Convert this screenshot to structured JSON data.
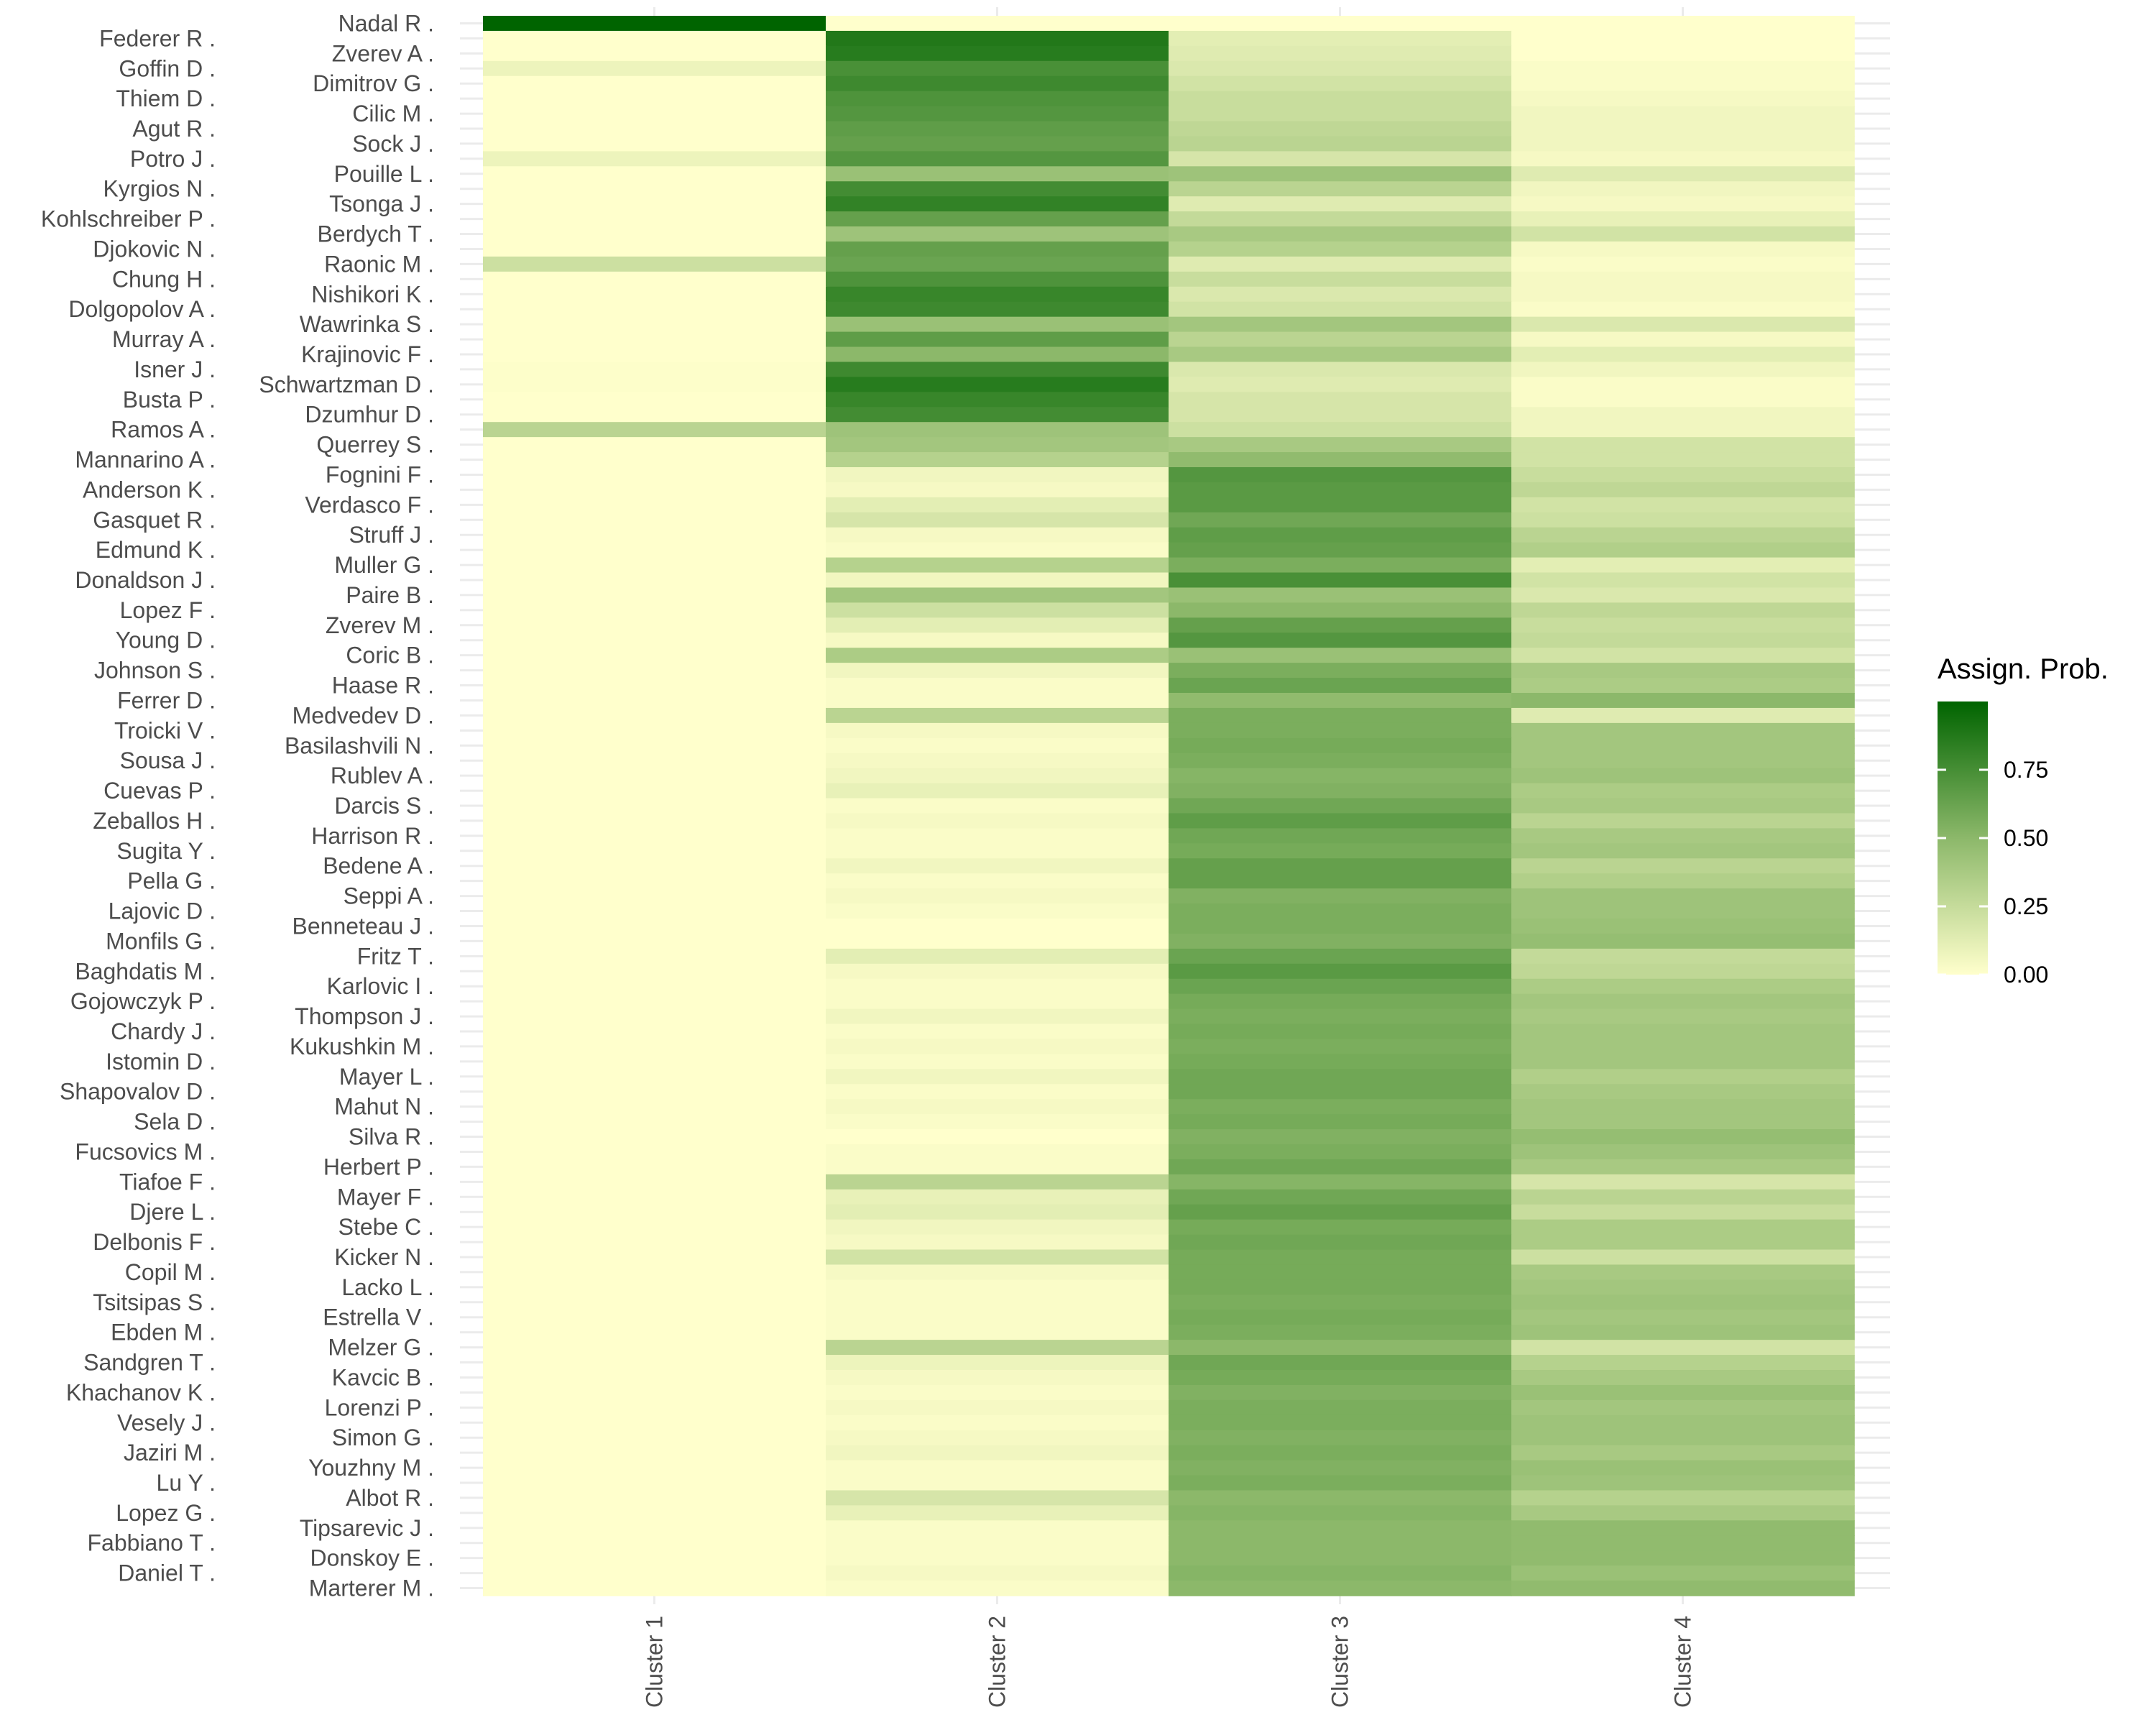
{
  "chart_data": {
    "type": "heatmap",
    "columns": [
      "Cluster 1",
      "Cluster 2",
      "Cluster 3",
      "Cluster 4"
    ],
    "rows": [
      "Nadal R .",
      "Federer R .",
      "Zverev A .",
      "Goffin D .",
      "Dimitrov G .",
      "Thiem D .",
      "Cilic M .",
      "Agut R .",
      "Sock J .",
      "Potro J .",
      "Pouille L .",
      "Kyrgios N .",
      "Tsonga J .",
      "Kohlschreiber P .",
      "Berdych T .",
      "Djokovic N .",
      "Raonic M .",
      "Chung H .",
      "Nishikori K .",
      "Dolgopolov A .",
      "Wawrinka S .",
      "Murray A .",
      "Krajinovic F .",
      "Isner J .",
      "Schwartzman D .",
      "Busta P .",
      "Dzumhur D .",
      "Ramos A .",
      "Querrey S .",
      "Mannarino A .",
      "Fognini F .",
      "Anderson K .",
      "Verdasco F .",
      "Gasquet R .",
      "Struff J .",
      "Edmund K .",
      "Muller G .",
      "Donaldson J .",
      "Paire B .",
      "Lopez F .",
      "Zverev M .",
      "Young D .",
      "Coric B .",
      "Johnson S .",
      "Haase R .",
      "Ferrer D .",
      "Medvedev D .",
      "Troicki V .",
      "Basilashvili N .",
      "Sousa J .",
      "Rublev A .",
      "Cuevas P .",
      "Darcis S .",
      "Zeballos H .",
      "Harrison R .",
      "Sugita Y .",
      "Bedene A .",
      "Pella G .",
      "Seppi A .",
      "Lajovic D .",
      "Benneteau J .",
      "Monfils G .",
      "Fritz T .",
      "Baghdatis M .",
      "Karlovic I .",
      "Gojowczyk P .",
      "Thompson J .",
      "Chardy J .",
      "Kukushkin M .",
      "Istomin D .",
      "Mayer L .",
      "Shapovalov D .",
      "Mahut N .",
      "Sela D .",
      "Silva R .",
      "Fucsovics M .",
      "Herbert P .",
      "Tiafoe F .",
      "Mayer F .",
      "Djere L .",
      "Stebe C .",
      "Delbonis F .",
      "Kicker N .",
      "Copil M .",
      "Lacko L .",
      "Tsitsipas S .",
      "Estrella V .",
      "Ebden M .",
      "Melzer G .",
      "Sandgren T .",
      "Kavcic B .",
      "Khachanov K .",
      "Lorenzi P .",
      "Vesely J .",
      "Simon G .",
      "Jaziri M .",
      "Youzhny M .",
      "Lu Y .",
      "Albot R .",
      "Lopez G .",
      "Tipsarevic J .",
      "Fabbiano T .",
      "Donskoy E .",
      "Daniel T .",
      "Marterer M ."
    ],
    "values": [
      [
        1.0,
        0.0,
        0.0,
        0.0
      ],
      [
        0.0,
        0.88,
        0.12,
        0.0
      ],
      [
        0.0,
        0.86,
        0.14,
        0.0
      ],
      [
        0.08,
        0.74,
        0.16,
        0.02
      ],
      [
        0.0,
        0.78,
        0.2,
        0.02
      ],
      [
        0.0,
        0.72,
        0.24,
        0.04
      ],
      [
        0.0,
        0.7,
        0.24,
        0.06
      ],
      [
        0.0,
        0.66,
        0.28,
        0.06
      ],
      [
        0.0,
        0.64,
        0.3,
        0.06
      ],
      [
        0.08,
        0.7,
        0.18,
        0.04
      ],
      [
        0.0,
        0.44,
        0.42,
        0.14
      ],
      [
        0.0,
        0.76,
        0.3,
        0.06
      ],
      [
        0.0,
        0.82,
        0.14,
        0.04
      ],
      [
        0.0,
        0.64,
        0.26,
        0.1
      ],
      [
        0.0,
        0.42,
        0.38,
        0.2
      ],
      [
        0.0,
        0.64,
        0.32,
        0.04
      ],
      [
        0.22,
        0.62,
        0.14,
        0.02
      ],
      [
        0.0,
        0.72,
        0.24,
        0.04
      ],
      [
        0.0,
        0.8,
        0.16,
        0.04
      ],
      [
        0.0,
        0.78,
        0.2,
        0.02
      ],
      [
        0.0,
        0.44,
        0.4,
        0.16
      ],
      [
        0.0,
        0.66,
        0.3,
        0.04
      ],
      [
        0.0,
        0.5,
        0.38,
        0.12
      ],
      [
        0.01,
        0.78,
        0.16,
        0.06
      ],
      [
        0.01,
        0.86,
        0.14,
        0.02
      ],
      [
        0.0,
        0.8,
        0.18,
        0.02
      ],
      [
        0.0,
        0.76,
        0.18,
        0.06
      ],
      [
        0.3,
        0.42,
        0.22,
        0.06
      ],
      [
        0.0,
        0.4,
        0.38,
        0.2
      ],
      [
        0.0,
        0.32,
        0.48,
        0.2
      ],
      [
        0.0,
        0.06,
        0.7,
        0.24
      ],
      [
        0.0,
        0.04,
        0.68,
        0.28
      ],
      [
        0.0,
        0.12,
        0.68,
        0.2
      ],
      [
        0.0,
        0.18,
        0.6,
        0.22
      ],
      [
        0.0,
        0.04,
        0.66,
        0.3
      ],
      [
        0.0,
        0.02,
        0.64,
        0.34
      ],
      [
        0.0,
        0.32,
        0.56,
        0.12
      ],
      [
        0.0,
        0.06,
        0.74,
        0.2
      ],
      [
        0.0,
        0.4,
        0.44,
        0.16
      ],
      [
        0.0,
        0.22,
        0.5,
        0.28
      ],
      [
        0.0,
        0.12,
        0.64,
        0.24
      ],
      [
        0.0,
        0.04,
        0.7,
        0.26
      ],
      [
        0.0,
        0.36,
        0.44,
        0.2
      ],
      [
        0.0,
        0.06,
        0.56,
        0.38
      ],
      [
        0.0,
        0.02,
        0.62,
        0.36
      ],
      [
        0.0,
        0.02,
        0.48,
        0.5
      ],
      [
        0.0,
        0.3,
        0.56,
        0.14
      ],
      [
        0.0,
        0.04,
        0.56,
        0.4
      ],
      [
        0.0,
        0.02,
        0.58,
        0.4
      ],
      [
        0.0,
        0.04,
        0.56,
        0.4
      ],
      [
        0.0,
        0.06,
        0.52,
        0.42
      ],
      [
        0.0,
        0.1,
        0.54,
        0.36
      ],
      [
        0.0,
        0.02,
        0.6,
        0.38
      ],
      [
        0.0,
        0.04,
        0.66,
        0.3
      ],
      [
        0.0,
        0.02,
        0.6,
        0.38
      ],
      [
        0.0,
        0.02,
        0.58,
        0.4
      ],
      [
        0.0,
        0.06,
        0.64,
        0.3
      ],
      [
        0.0,
        0.02,
        0.64,
        0.34
      ],
      [
        0.0,
        0.04,
        0.54,
        0.42
      ],
      [
        0.0,
        0.02,
        0.56,
        0.42
      ],
      [
        0.0,
        0.0,
        0.56,
        0.44
      ],
      [
        0.0,
        0.0,
        0.54,
        0.46
      ],
      [
        0.0,
        0.12,
        0.62,
        0.26
      ],
      [
        0.0,
        0.04,
        0.68,
        0.28
      ],
      [
        0.0,
        0.02,
        0.62,
        0.36
      ],
      [
        0.0,
        0.02,
        0.58,
        0.4
      ],
      [
        0.0,
        0.06,
        0.56,
        0.38
      ],
      [
        0.0,
        0.02,
        0.58,
        0.4
      ],
      [
        0.0,
        0.04,
        0.56,
        0.4
      ],
      [
        0.0,
        0.02,
        0.58,
        0.4
      ],
      [
        0.0,
        0.06,
        0.6,
        0.34
      ],
      [
        0.0,
        0.02,
        0.6,
        0.38
      ],
      [
        0.0,
        0.04,
        0.56,
        0.4
      ],
      [
        0.0,
        0.02,
        0.58,
        0.4
      ],
      [
        0.0,
        0.0,
        0.54,
        0.46
      ],
      [
        0.0,
        0.02,
        0.56,
        0.42
      ],
      [
        0.0,
        0.02,
        0.6,
        0.38
      ],
      [
        0.0,
        0.3,
        0.52,
        0.18
      ],
      [
        0.0,
        0.1,
        0.6,
        0.3
      ],
      [
        0.0,
        0.12,
        0.64,
        0.24
      ],
      [
        0.0,
        0.06,
        0.58,
        0.36
      ],
      [
        0.0,
        0.04,
        0.6,
        0.36
      ],
      [
        0.0,
        0.2,
        0.58,
        0.22
      ],
      [
        0.0,
        0.04,
        0.58,
        0.38
      ],
      [
        0.0,
        0.02,
        0.58,
        0.4
      ],
      [
        0.0,
        0.02,
        0.56,
        0.42
      ],
      [
        0.0,
        0.02,
        0.58,
        0.4
      ],
      [
        0.0,
        0.02,
        0.56,
        0.42
      ],
      [
        0.0,
        0.3,
        0.5,
        0.2
      ],
      [
        0.0,
        0.08,
        0.6,
        0.32
      ],
      [
        0.0,
        0.04,
        0.58,
        0.38
      ],
      [
        0.0,
        0.02,
        0.54,
        0.44
      ],
      [
        0.0,
        0.04,
        0.56,
        0.4
      ],
      [
        0.0,
        0.02,
        0.56,
        0.42
      ],
      [
        0.0,
        0.04,
        0.54,
        0.42
      ],
      [
        0.0,
        0.06,
        0.56,
        0.38
      ],
      [
        0.0,
        0.02,
        0.54,
        0.44
      ],
      [
        0.0,
        0.02,
        0.56,
        0.42
      ],
      [
        0.0,
        0.18,
        0.5,
        0.32
      ],
      [
        0.0,
        0.1,
        0.52,
        0.38
      ],
      [
        0.0,
        0.02,
        0.5,
        0.48
      ],
      [
        0.0,
        0.02,
        0.5,
        0.48
      ],
      [
        0.0,
        0.02,
        0.5,
        0.48
      ],
      [
        0.0,
        0.04,
        0.52,
        0.44
      ],
      [
        0.0,
        0.02,
        0.5,
        0.48
      ]
    ],
    "legend": {
      "title": "Assign. Prob.",
      "ticks": [
        0.0,
        0.25,
        0.5,
        0.75
      ],
      "tick_labels": [
        "0.00",
        "0.25",
        "0.50",
        "0.75"
      ],
      "range": [
        0,
        1
      ]
    },
    "colors": {
      "low": "#ffffcc",
      "mid": "#8cb86a",
      "high": "#006400",
      "grid": "#ebebeb",
      "text": "#4d4d4d"
    },
    "ylabel": "",
    "xlabel": "",
    "grid": true,
    "legend_position": "right"
  }
}
